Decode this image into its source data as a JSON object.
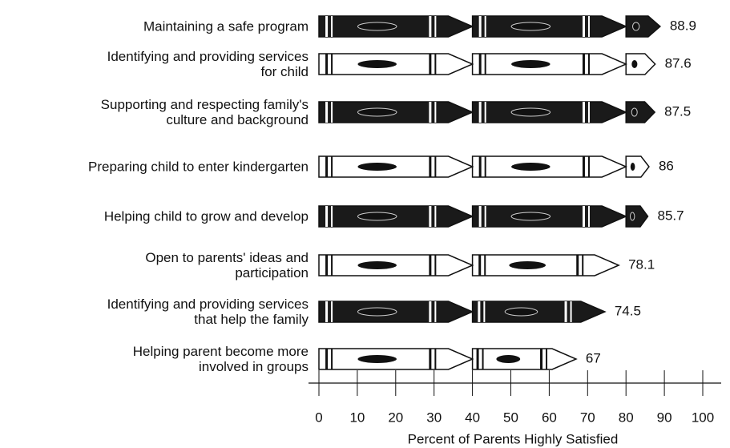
{
  "chart_data": {
    "type": "bar",
    "orientation": "horizontal",
    "x_label": "Percent of Parents Highly Satisfied",
    "categories": [
      "Maintaining a safe program",
      "Identifying and providing services\nfor child",
      "Supporting and respecting family's\nculture and background",
      "Preparing child to enter kindergarten",
      "Helping child to grow and develop",
      "Open to parents' ideas and\nparticipation",
      "Identifying and providing services\nthat help the family",
      "Helping parent become more\ninvolved in groups"
    ],
    "values": [
      88.9,
      87.6,
      87.5,
      86,
      85.7,
      78.1,
      74.5,
      67
    ],
    "colors": [
      "#1a1a1a",
      "#ffffff",
      "#1a1a1a",
      "#ffffff",
      "#1a1a1a",
      "#ffffff",
      "#1a1a1a",
      "#ffffff"
    ],
    "xlim": [
      0,
      100
    ],
    "xticks": [
      0,
      10,
      20,
      30,
      40,
      50,
      60,
      70,
      80,
      90,
      100
    ]
  }
}
